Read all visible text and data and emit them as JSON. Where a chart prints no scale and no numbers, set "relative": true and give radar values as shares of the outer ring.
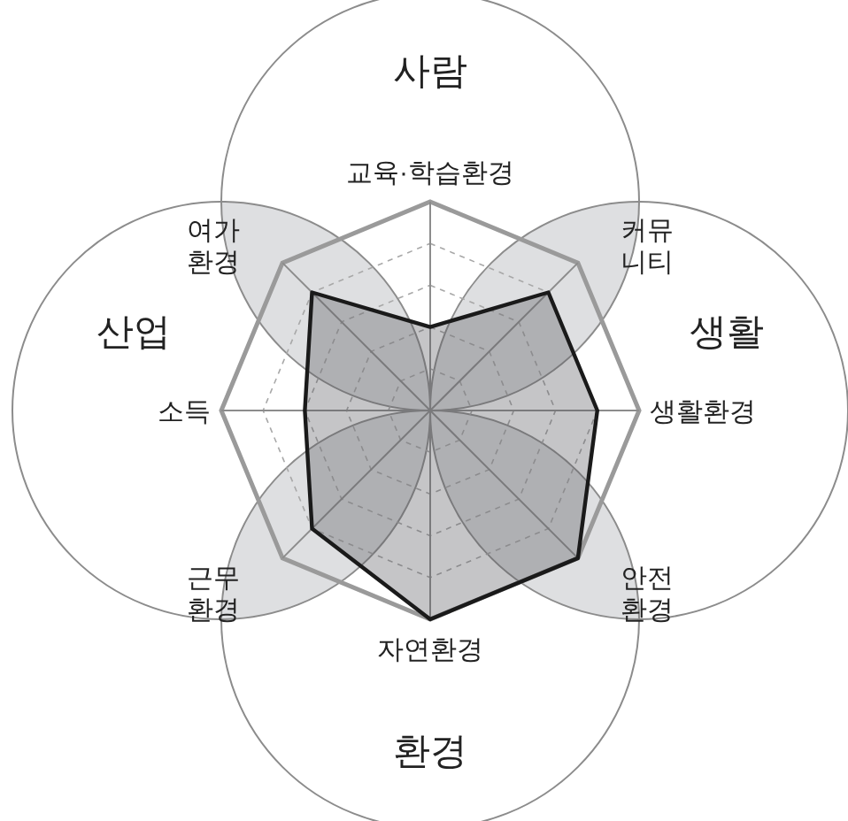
{
  "chart_data": {
    "type": "radar",
    "relative": true,
    "grid": true,
    "categories": [
      "교육·학습환경",
      "커뮤\n니티",
      "생활환경",
      "안전\n환경",
      "자연환경",
      "근무\n환경",
      "소득",
      "여가\n환경"
    ],
    "series": [
      {
        "color": "#1a1a1a",
        "values": [
          0.4,
          0.8,
          0.8,
          1,
          1,
          0.8,
          0.6,
          0.8
        ]
      }
    ],
    "annotations": [
      "사람",
      "생활",
      "환경",
      "산업"
    ]
  }
}
